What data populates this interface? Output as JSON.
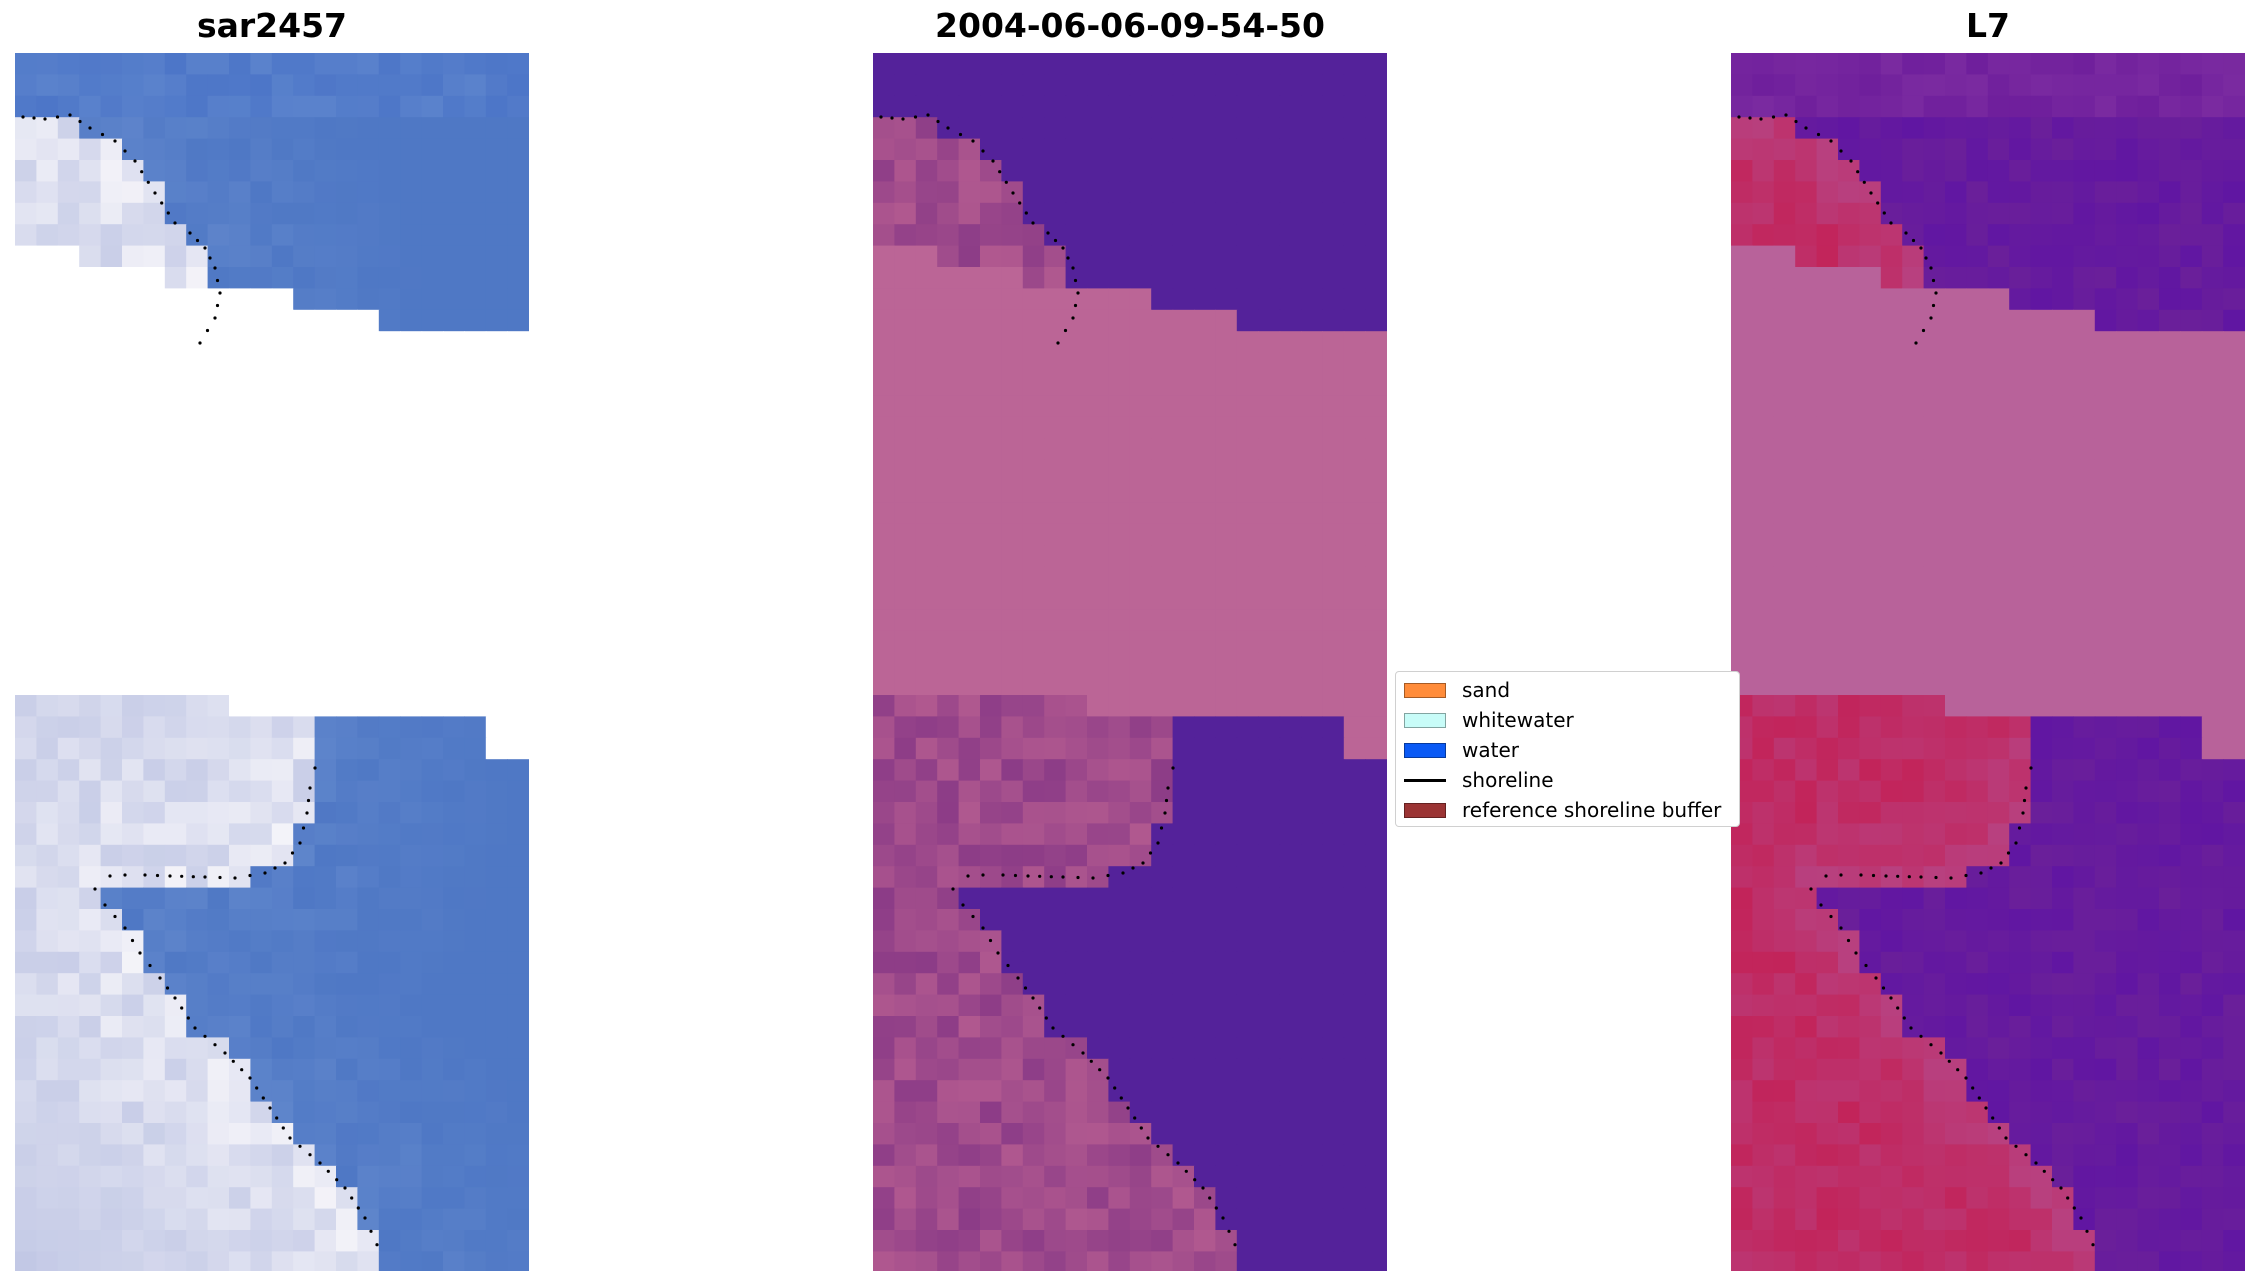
{
  "panels": [
    {
      "title": "sar2457",
      "scheme": "rgb"
    },
    {
      "title": "2004-06-06-09-54-50",
      "scheme": "classified"
    },
    {
      "title": "L7",
      "scheme": "index"
    }
  ],
  "colors": {
    "background": "#ffffff",
    "nodata_classified": "#bb6596",
    "water_classified": "#54229a",
    "rgb_water": "#4f78c5",
    "rgb_foam": "#f2f0f5",
    "index_low": "#6a1f9a",
    "index_high": "#c82352",
    "shoreline": "#000000"
  },
  "legend": {
    "items": [
      {
        "label": "sand",
        "color": "#ff8c3a",
        "type": "patch"
      },
      {
        "label": "whitewater",
        "color": "#c8fcf8",
        "type": "patch"
      },
      {
        "label": "water",
        "color": "#0a5af5",
        "type": "patch"
      },
      {
        "label": "shoreline",
        "color": "#000000",
        "type": "line"
      },
      {
        "label": "reference shoreline buffer",
        "color": "#9b3434",
        "type": "patch"
      }
    ]
  }
}
